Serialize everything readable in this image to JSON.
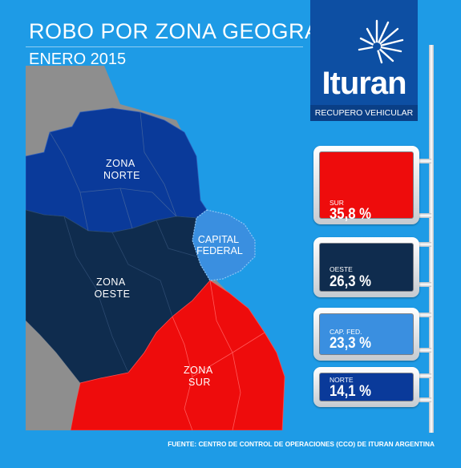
{
  "title": "ROBO POR ZONA GEOGRAF.",
  "period": "ENERO 2015",
  "brand": {
    "name": "Ituran",
    "tagline": "RECUPERO VEHICULAR",
    "colors": {
      "primary": "#0d4fa3",
      "background": "#1e9be6"
    }
  },
  "map": {
    "zones": [
      {
        "id": "norte",
        "lines": [
          "ZONA",
          "NORTE"
        ],
        "color": "#0a3a9a"
      },
      {
        "id": "oeste",
        "lines": [
          "ZONA",
          "OESTE"
        ],
        "color": "#0f2c4e"
      },
      {
        "id": "sur",
        "lines": [
          "ZONA",
          "SUR"
        ],
        "color": "#ee0c0c"
      },
      {
        "id": "capital",
        "lines": [
          "CAPITAL",
          "FEDERAL"
        ],
        "color": "#3a8fe0"
      }
    ],
    "outside_color": "#8e8e8e"
  },
  "stats": [
    {
      "region": "SUR",
      "value": "35,8 %",
      "percent": 35.8,
      "color": "#ee0c0c"
    },
    {
      "region": "OESTE",
      "value": "26,3 %",
      "percent": 26.3,
      "color": "#0f2c4e"
    },
    {
      "region": "CAP. FED.",
      "value": "23,3 %",
      "percent": 23.3,
      "color": "#3a8fe0"
    },
    {
      "region": "NORTE",
      "value": "14,1 %",
      "percent": 14.1,
      "color": "#0a3a9a"
    }
  ],
  "source": "FUENTE: CENTRO DE CONTROL DE OPERACIONES (CCO) DE ITURAN ARGENTINA"
}
